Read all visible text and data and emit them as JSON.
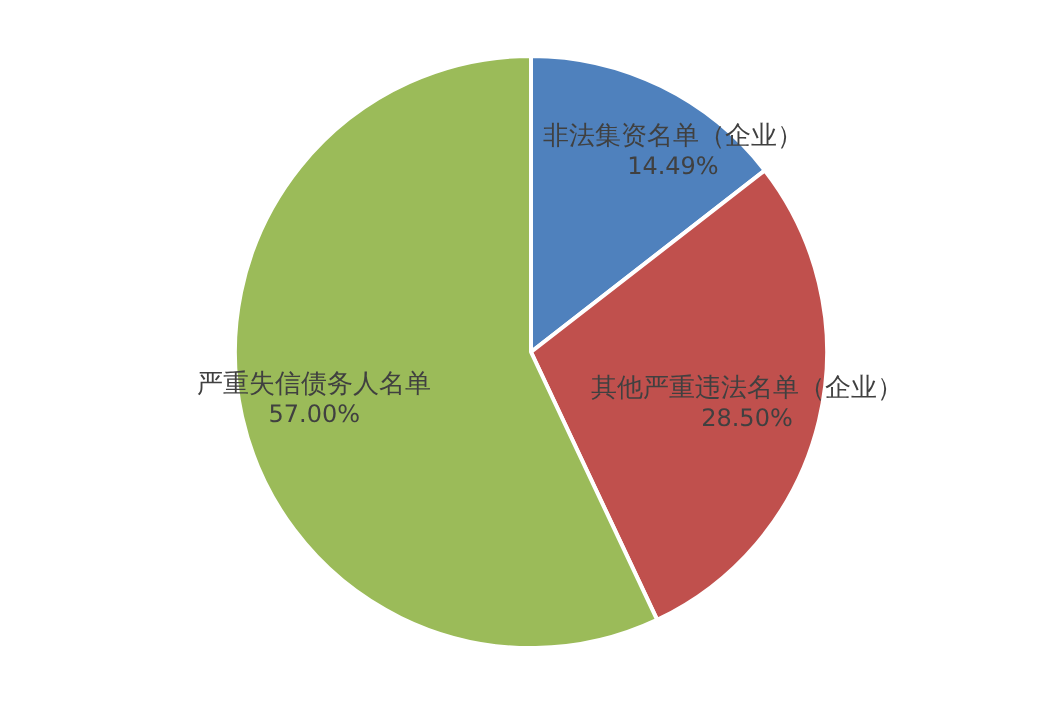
{
  "chart_data": {
    "type": "pie",
    "categories": [
      "非法集资名单（企业）",
      "其他严重违法名单（企业）",
      "严重失信债务人名单"
    ],
    "values": [
      14.49,
      28.5,
      57.0
    ],
    "colors": [
      "#4f81bd",
      "#c0504d",
      "#9bbb59"
    ],
    "value_labels": [
      "14.49%",
      "28.50%",
      "57.00%"
    ]
  }
}
